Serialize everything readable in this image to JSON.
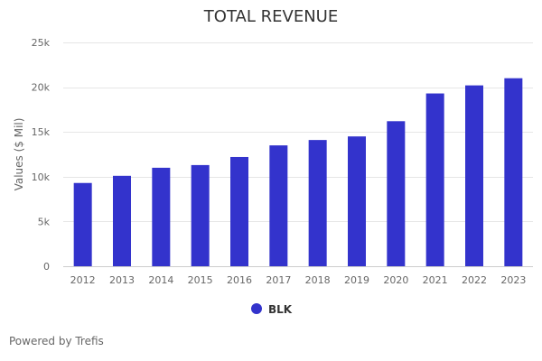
{
  "chart_data": {
    "type": "bar",
    "title": "TOTAL REVENUE",
    "ylabel": "Values ($ Mil)",
    "xlabel": "",
    "categories": [
      "2012",
      "2013",
      "2014",
      "2015",
      "2016",
      "2017",
      "2018",
      "2019",
      "2020",
      "2021",
      "2022",
      "2023"
    ],
    "series": [
      {
        "name": "BLK",
        "color": "#3333cc",
        "values": [
          9300,
          10100,
          11000,
          11300,
          12200,
          13500,
          14100,
          14500,
          16200,
          19300,
          20200,
          21000
        ]
      }
    ],
    "ylim": [
      0,
      25000
    ],
    "yticks": [
      0,
      5000,
      10000,
      15000,
      20000,
      25000
    ],
    "ytick_labels": [
      "0",
      "5k",
      "10k",
      "15k",
      "20k",
      "25k"
    ],
    "grid": true,
    "legend_position": "bottom-center"
  },
  "credit": "Powered by Trefis"
}
